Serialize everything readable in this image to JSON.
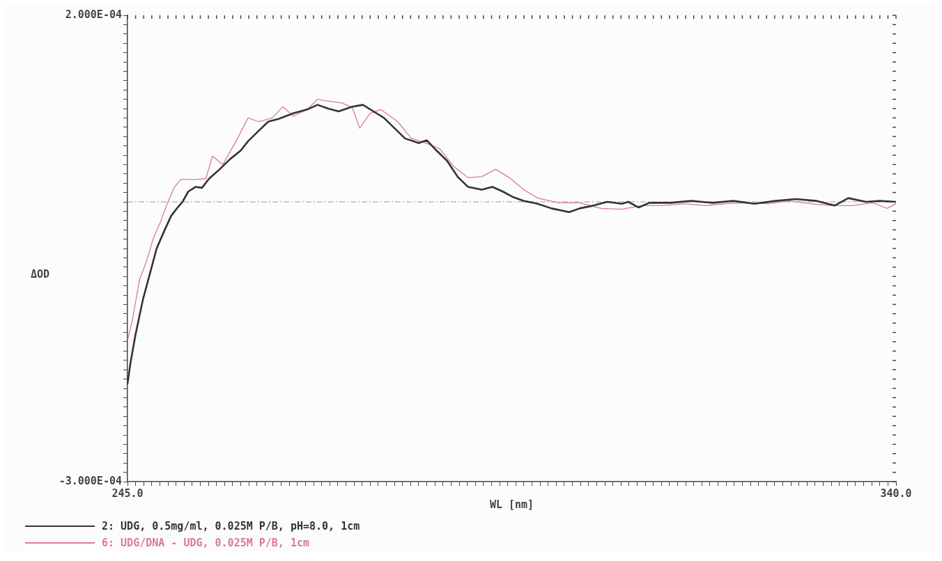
{
  "chart_data": {
    "type": "line",
    "xlabel": "WL [nm]",
    "ylabel": "ΔOD",
    "legend": "bottom",
    "marker": "none",
    "line_style": "solid",
    "xlim": [
      245,
      340
    ],
    "ylim": [
      -0.0003,
      0.0002
    ],
    "xticks": [
      {
        "value": 245,
        "label": "245.0"
      },
      {
        "value": 246,
        "label": null
      },
      {
        "value": 247,
        "label": null
      },
      {
        "value": 248,
        "label": null
      },
      {
        "value": 249,
        "label": null
      },
      {
        "value": 250,
        "label": null
      },
      {
        "value": 251,
        "label": null
      },
      {
        "value": 252,
        "label": null
      },
      {
        "value": 253,
        "label": null
      },
      {
        "value": 254,
        "label": null
      },
      {
        "value": 255,
        "label": null
      },
      {
        "value": 256,
        "label": null
      },
      {
        "value": 257,
        "label": null
      },
      {
        "value": 258,
        "label": null
      },
      {
        "value": 259,
        "label": null
      },
      {
        "value": 260,
        "label": null
      },
      {
        "value": 261,
        "label": null
      },
      {
        "value": 262,
        "label": null
      },
      {
        "value": 263,
        "label": null
      },
      {
        "value": 264,
        "label": null
      },
      {
        "value": 265,
        "label": null
      },
      {
        "value": 266,
        "label": null
      },
      {
        "value": 267,
        "label": null
      },
      {
        "value": 268,
        "label": null
      },
      {
        "value": 269,
        "label": null
      },
      {
        "value": 270,
        "label": null
      },
      {
        "value": 271,
        "label": null
      },
      {
        "value": 272,
        "label": null
      },
      {
        "value": 273,
        "label": null
      },
      {
        "value": 274,
        "label": null
      },
      {
        "value": 275,
        "label": null
      },
      {
        "value": 276,
        "label": null
      },
      {
        "value": 277,
        "label": null
      },
      {
        "value": 278,
        "label": null
      },
      {
        "value": 279,
        "label": null
      },
      {
        "value": 280,
        "label": null
      },
      {
        "value": 281,
        "label": null
      },
      {
        "value": 282,
        "label": null
      },
      {
        "value": 283,
        "label": null
      },
      {
        "value": 284,
        "label": null
      },
      {
        "value": 285,
        "label": null
      },
      {
        "value": 286,
        "label": null
      },
      {
        "value": 287,
        "label": null
      },
      {
        "value": 288,
        "label": null
      },
      {
        "value": 289,
        "label": null
      },
      {
        "value": 290,
        "label": null
      },
      {
        "value": 291,
        "label": null
      },
      {
        "value": 292,
        "label": null
      },
      {
        "value": 293,
        "label": null
      },
      {
        "value": 294,
        "label": null
      },
      {
        "value": 295,
        "label": null
      },
      {
        "value": 296,
        "label": null
      },
      {
        "value": 297,
        "label": null
      },
      {
        "value": 298,
        "label": null
      },
      {
        "value": 299,
        "label": null
      },
      {
        "value": 300,
        "label": null
      },
      {
        "value": 301,
        "label": null
      },
      {
        "value": 302,
        "label": null
      },
      {
        "value": 303,
        "label": null
      },
      {
        "value": 304,
        "label": null
      },
      {
        "value": 305,
        "label": null
      },
      {
        "value": 306,
        "label": null
      },
      {
        "value": 307,
        "label": null
      },
      {
        "value": 308,
        "label": null
      },
      {
        "value": 309,
        "label": null
      },
      {
        "value": 310,
        "label": null
      },
      {
        "value": 311,
        "label": null
      },
      {
        "value": 312,
        "label": null
      },
      {
        "value": 313,
        "label": null
      },
      {
        "value": 314,
        "label": null
      },
      {
        "value": 315,
        "label": null
      },
      {
        "value": 316,
        "label": null
      },
      {
        "value": 317,
        "label": null
      },
      {
        "value": 318,
        "label": null
      },
      {
        "value": 319,
        "label": null
      },
      {
        "value": 320,
        "label": null
      },
      {
        "value": 321,
        "label": null
      },
      {
        "value": 322,
        "label": null
      },
      {
        "value": 323,
        "label": null
      },
      {
        "value": 324,
        "label": null
      },
      {
        "value": 325,
        "label": null
      },
      {
        "value": 326,
        "label": null
      },
      {
        "value": 327,
        "label": null
      },
      {
        "value": 328,
        "label": null
      },
      {
        "value": 329,
        "label": null
      },
      {
        "value": 330,
        "label": null
      },
      {
        "value": 331,
        "label": null
      },
      {
        "value": 332,
        "label": null
      },
      {
        "value": 333,
        "label": null
      },
      {
        "value": 334,
        "label": null
      },
      {
        "value": 335,
        "label": null
      },
      {
        "value": 336,
        "label": null
      },
      {
        "value": 337,
        "label": null
      },
      {
        "value": 338,
        "label": null
      },
      {
        "value": 339,
        "label": null
      },
      {
        "value": 340,
        "label": "340.0"
      }
    ],
    "yticks": [
      {
        "value": -0.0003,
        "label": "-3.000E-04"
      },
      {
        "value": -0.00029,
        "label": null
      },
      {
        "value": -0.00028,
        "label": null
      },
      {
        "value": -0.00027,
        "label": null
      },
      {
        "value": -0.00026,
        "label": null
      },
      {
        "value": -0.00025,
        "label": null
      },
      {
        "value": -0.00024,
        "label": null
      },
      {
        "value": -0.00023,
        "label": null
      },
      {
        "value": -0.00022,
        "label": null
      },
      {
        "value": -0.00021,
        "label": null
      },
      {
        "value": -0.0002,
        "label": null
      },
      {
        "value": -0.00019,
        "label": null
      },
      {
        "value": -0.00018,
        "label": null
      },
      {
        "value": -0.00017,
        "label": null
      },
      {
        "value": -0.00016,
        "label": null
      },
      {
        "value": -0.00015,
        "label": null
      },
      {
        "value": -0.00014,
        "label": null
      },
      {
        "value": -0.00013,
        "label": null
      },
      {
        "value": -0.00012,
        "label": null
      },
      {
        "value": -0.00011,
        "label": null
      },
      {
        "value": -0.0001,
        "label": null
      },
      {
        "value": -9e-05,
        "label": null
      },
      {
        "value": -8e-05,
        "label": null
      },
      {
        "value": -7e-05,
        "label": null
      },
      {
        "value": -6e-05,
        "label": null
      },
      {
        "value": -5e-05,
        "label": null
      },
      {
        "value": -4e-05,
        "label": null
      },
      {
        "value": -3e-05,
        "label": null
      },
      {
        "value": -2e-05,
        "label": null
      },
      {
        "value": -1e-05,
        "label": null
      },
      {
        "value": 0,
        "label": null
      },
      {
        "value": 1e-05,
        "label": null
      },
      {
        "value": 2e-05,
        "label": null
      },
      {
        "value": 3e-05,
        "label": null
      },
      {
        "value": 4e-05,
        "label": null
      },
      {
        "value": 5e-05,
        "label": null
      },
      {
        "value": 6e-05,
        "label": null
      },
      {
        "value": 7e-05,
        "label": null
      },
      {
        "value": 8e-05,
        "label": null
      },
      {
        "value": 9e-05,
        "label": null
      },
      {
        "value": 0.0001,
        "label": null
      },
      {
        "value": 0.00011,
        "label": null
      },
      {
        "value": 0.00012,
        "label": null
      },
      {
        "value": 0.00013,
        "label": null
      },
      {
        "value": 0.00014,
        "label": null
      },
      {
        "value": 0.00015,
        "label": null
      },
      {
        "value": 0.00016,
        "label": null
      },
      {
        "value": 0.00017,
        "label": null
      },
      {
        "value": 0.00018,
        "label": null
      },
      {
        "value": 0.00019,
        "label": null
      },
      {
        "value": 0.0002,
        "label": "2.000E-04"
      }
    ],
    "ref_lines": [
      {
        "axis": "y",
        "value": 0,
        "label": null,
        "color": "#999999",
        "line_style": "dashed"
      }
    ],
    "series": [
      {
        "name": "2: UDG, 0.5mg/ml, 0.025M P/B, pH=8.0, 1cm",
        "color": "#333333",
        "x": [
          245.0,
          245.4,
          246.0,
          246.9,
          247.8,
          248.6,
          249.5,
          250.4,
          251.2,
          251.8,
          252.5,
          253.4,
          254.2,
          255.1,
          256.4,
          257.7,
          259.0,
          259.9,
          261.2,
          262.4,
          263.7,
          265.5,
          267.2,
          268.5,
          269.8,
          271.1,
          272.8,
          274.1,
          275.4,
          276.7,
          278.0,
          279.3,
          281.0,
          282.0,
          283.2,
          284.5,
          285.8,
          287.1,
          288.8,
          290.1,
          291.4,
          292.7,
          294.0,
          295.7,
          297.4,
          299.6,
          300.9,
          302.6,
          304.3,
          306.1,
          306.9,
          308.2,
          309.5,
          312.1,
          314.7,
          317.3,
          319.9,
          322.5,
          325.1,
          327.6,
          330.2,
          332.4,
          334.1,
          336.3,
          338.0,
          340.0
        ],
        "values": [
          -0.000195,
          -0.000171,
          -0.000142,
          -0.000105,
          -7.6e-05,
          -5e-05,
          -3.2e-05,
          -1.5e-05,
          -6e-06,
          0,
          1.1e-05,
          1.6e-05,
          1.5e-05,
          2.5e-05,
          3.5e-05,
          4.6e-05,
          5.5e-05,
          6.5e-05,
          7.6e-05,
          8.6e-05,
          8.9e-05,
          9.5e-05,
          9.9e-05,
          0.000104,
          0.0001,
          9.7e-05,
          0.000102,
          0.000104,
          9.7e-05,
          9e-05,
          7.9e-05,
          6.8e-05,
          6.3e-05,
          6.6e-05,
          5.5e-05,
          4.4e-05,
          2.7e-05,
          1.6e-05,
          1.3e-05,
          1.6e-05,
          1.1e-05,
          5e-06,
          1e-06,
          -2e-06,
          -7e-06,
          -1.1e-05,
          -7e-06,
          -4e-06,
          0,
          -2e-06,
          0,
          -6e-06,
          -1e-06,
          -1e-06,
          1e-06,
          -1e-06,
          1e-06,
          -2e-06,
          1e-06,
          3e-06,
          1e-06,
          -4e-06,
          4e-06,
          0,
          1e-06,
          0
        ]
      },
      {
        "name": "6: UDG/DNA - UDG, 0.025M P/B, 1cm",
        "color": "#d87a9a",
        "x": [
          245.0,
          245.6,
          246.5,
          247.3,
          248.2,
          249.1,
          249.9,
          250.8,
          251.6,
          253.4,
          254.7,
          255.5,
          256.8,
          258.6,
          259.9,
          261.2,
          262.9,
          264.2,
          265.5,
          267.2,
          268.5,
          269.8,
          271.5,
          272.8,
          273.7,
          275.0,
          276.3,
          278.4,
          280.1,
          281.9,
          283.6,
          285.3,
          287.1,
          288.8,
          290.5,
          292.2,
          294.0,
          295.7,
          298.3,
          300.9,
          303.5,
          306.1,
          308.6,
          311.2,
          313.8,
          316.4,
          319.0,
          321.6,
          324.2,
          326.8,
          329.4,
          332.0,
          334.6,
          337.1,
          338.9,
          340.0
        ],
        "values": [
          -0.000149,
          -0.000127,
          -8.3e-05,
          -6.5e-05,
          -3.9e-05,
          -2.1e-05,
          -2e-06,
          1.6e-05,
          2.4e-05,
          2.4e-05,
          2.5e-05,
          4.9e-05,
          4e-05,
          6.8e-05,
          9e-05,
          8.6e-05,
          9e-05,
          0.000102,
          9.2e-05,
          9.9e-05,
          0.00011,
          0.000108,
          0.000106,
          0.000101,
          7.9e-05,
          9.5e-05,
          9.9e-05,
          8.6e-05,
          6.8e-05,
          6.3e-05,
          5.7e-05,
          3.8e-05,
          2.6e-05,
          2.7e-05,
          3.5e-05,
          2.6e-05,
          1.3e-05,
          4e-06,
          -1e-06,
          -1e-06,
          -7e-06,
          -8e-06,
          -4e-06,
          -4e-06,
          -2e-06,
          -4e-06,
          -2e-06,
          -1e-06,
          -2e-06,
          1e-06,
          -2e-06,
          -4e-06,
          -4e-06,
          -1e-06,
          -7e-06,
          -2e-06
        ]
      }
    ]
  }
}
